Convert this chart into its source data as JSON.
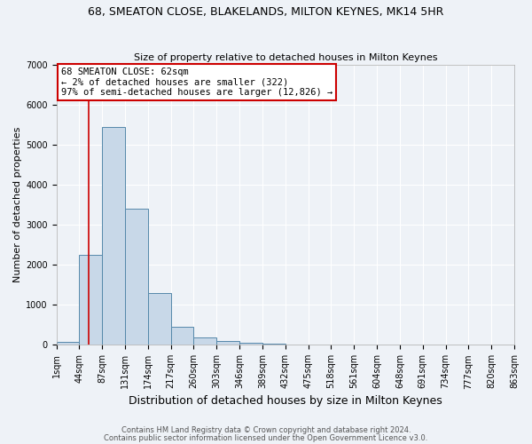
{
  "title1": "68, SMEATON CLOSE, BLAKELANDS, MILTON KEYNES, MK14 5HR",
  "title2": "Size of property relative to detached houses in Milton Keynes",
  "xlabel": "Distribution of detached houses by size in Milton Keynes",
  "ylabel": "Number of detached properties",
  "annotation_line1": "68 SMEATON CLOSE: 62sqm",
  "annotation_line2": "← 2% of detached houses are smaller (322)",
  "annotation_line3": "97% of semi-detached houses are larger (12,826) →",
  "footer1": "Contains HM Land Registry data © Crown copyright and database right 2024.",
  "footer2": "Contains public sector information licensed under the Open Government Licence v3.0.",
  "bin_labels": [
    "1sqm",
    "44sqm",
    "87sqm",
    "131sqm",
    "174sqm",
    "217sqm",
    "260sqm",
    "303sqm",
    "346sqm",
    "389sqm",
    "432sqm",
    "475sqm",
    "518sqm",
    "561sqm",
    "604sqm",
    "648sqm",
    "691sqm",
    "734sqm",
    "777sqm",
    "820sqm",
    "863sqm"
  ],
  "bar_heights": [
    75,
    2250,
    5450,
    3400,
    1300,
    450,
    175,
    90,
    60,
    40,
    0,
    0,
    0,
    0,
    0,
    0,
    0,
    0,
    0,
    0
  ],
  "bar_color": "#c8d8e8",
  "bar_edge_color": "#5588aa",
  "red_line_x": 1.42,
  "ylim": [
    0,
    7000
  ],
  "background_color": "#eef2f7",
  "grid_color": "#ffffff",
  "annotation_box_color": "#ffffff",
  "annotation_box_edge": "#cc0000",
  "red_line_color": "#cc0000",
  "title1_fontsize": 9,
  "title2_fontsize": 8,
  "xlabel_fontsize": 9,
  "ylabel_fontsize": 8,
  "tick_fontsize": 7,
  "annot_fontsize": 7.5,
  "footer_fontsize": 6
}
